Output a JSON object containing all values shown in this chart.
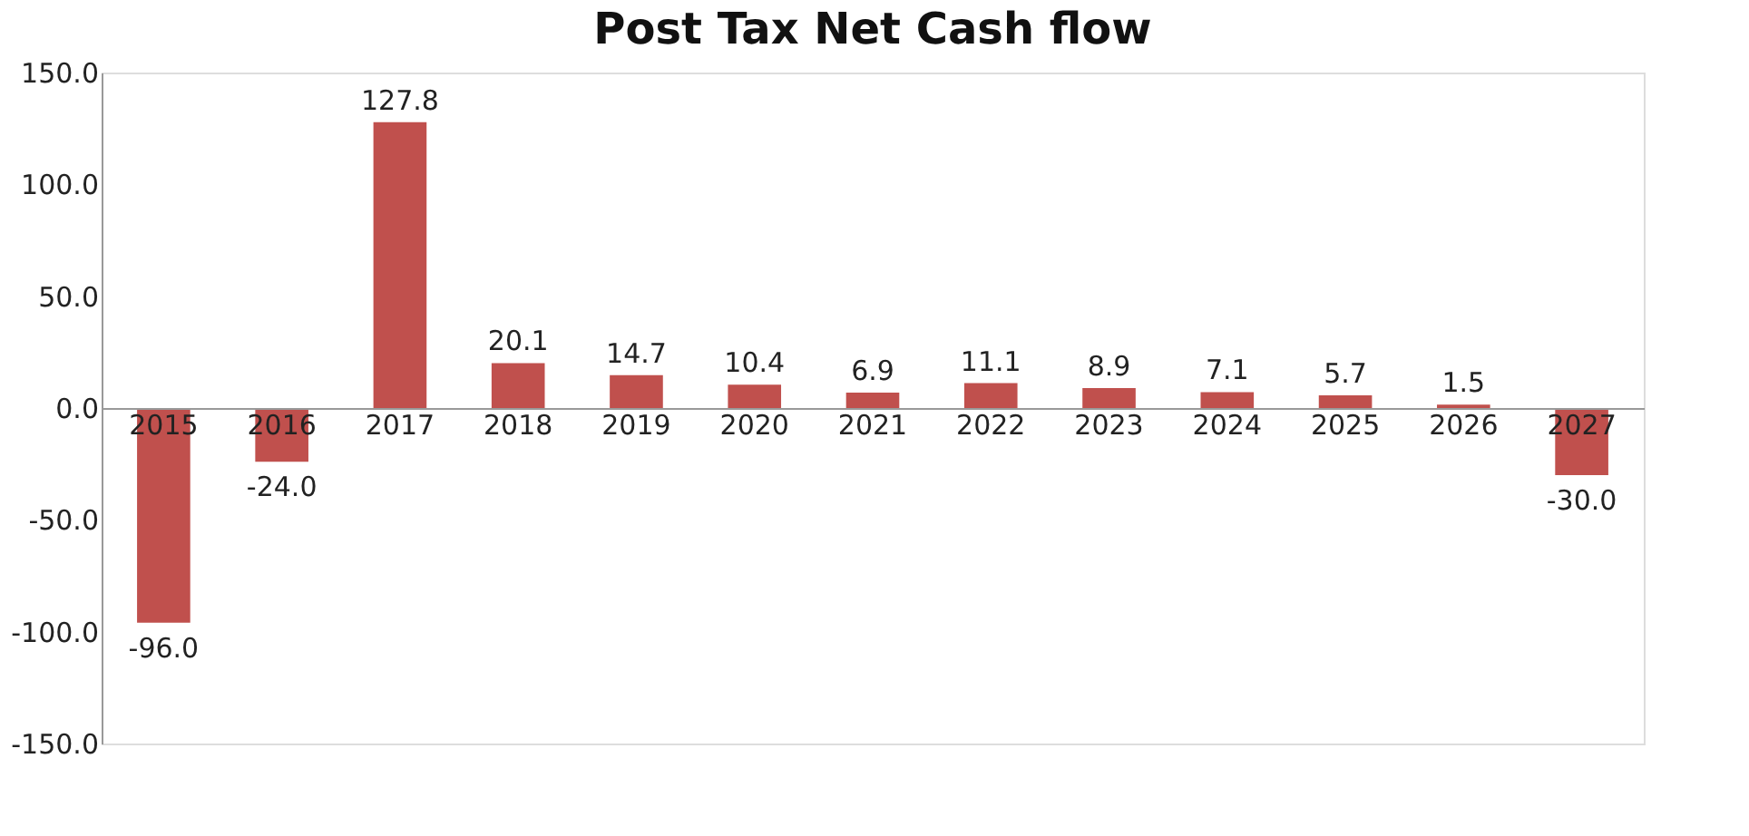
{
  "chart_data": {
    "type": "bar",
    "title": "Post Tax Net Cash flow",
    "categories": [
      "2015",
      "2016",
      "2017",
      "2018",
      "2019",
      "2020",
      "2021",
      "2022",
      "2023",
      "2024",
      "2025",
      "2026",
      "2027"
    ],
    "values": [
      -96.0,
      -24.0,
      127.8,
      20.1,
      14.7,
      10.4,
      6.9,
      11.1,
      8.9,
      7.1,
      5.7,
      1.5,
      -30.0
    ],
    "value_labels": [
      "-96.0",
      "-24.0",
      "127.8",
      "20.1",
      "14.7",
      "10.4",
      "6.9",
      "11.1",
      "8.9",
      "7.1",
      "5.7",
      "1.5",
      "-30.0"
    ],
    "color": "#c0504d",
    "ylim": [
      -150,
      150
    ],
    "yticks": [
      {
        "value": -150,
        "label": "-150.0"
      },
      {
        "value": -100,
        "label": "-100.0"
      },
      {
        "value": -50,
        "label": "-50.0"
      },
      {
        "value": 0,
        "label": "0.0"
      },
      {
        "value": 50,
        "label": "50.0"
      },
      {
        "value": 100,
        "label": "100.0"
      },
      {
        "value": 150,
        "label": "150.0"
      }
    ],
    "grid": false
  }
}
